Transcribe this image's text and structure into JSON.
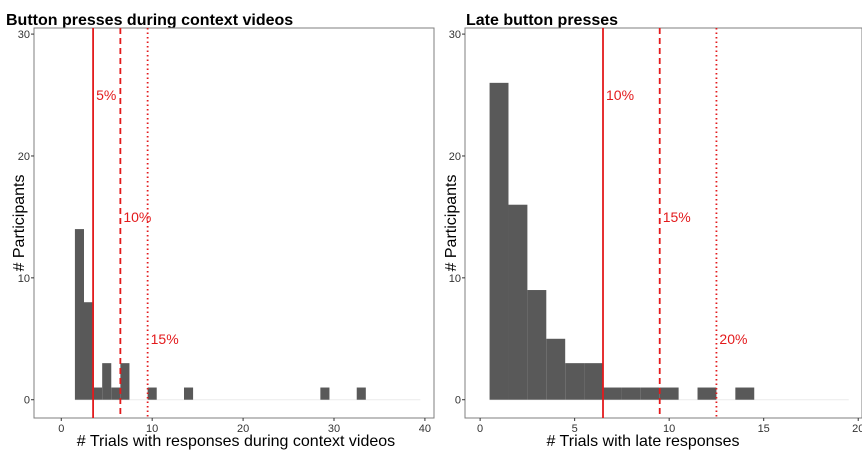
{
  "colors": {
    "bar": "#595959",
    "vline": "#e31a1c",
    "frame": "#7f7f7f",
    "text": "#000000"
  },
  "chart_data": [
    {
      "type": "bar",
      "title": "Button presses during context videos",
      "xlabel": "# Trials with responses during context videos",
      "ylabel": "# Participants",
      "xlim": [
        -3,
        41
      ],
      "ylim": [
        -1.5,
        30.5
      ],
      "xticks": [
        "0",
        "10",
        "20",
        "30",
        "40"
      ],
      "xtick_values": [
        0,
        10,
        20,
        30,
        40
      ],
      "yticks": [
        "0",
        "10",
        "20",
        "30"
      ],
      "ytick_values": [
        0,
        10,
        20,
        30
      ],
      "bin_width": 1,
      "bins": [
        {
          "x": 2,
          "count": 14
        },
        {
          "x": 3,
          "count": 8
        },
        {
          "x": 4,
          "count": 1
        },
        {
          "x": 5,
          "count": 3
        },
        {
          "x": 6,
          "count": 1
        },
        {
          "x": 7,
          "count": 3
        },
        {
          "x": 10,
          "count": 1
        },
        {
          "x": 14,
          "count": 1
        },
        {
          "x": 29,
          "count": 1
        },
        {
          "x": 33,
          "count": 1
        }
      ],
      "baseline_extent": [
        1.5,
        39.5
      ],
      "vlines": [
        {
          "x": 3.5,
          "style": "solid",
          "label": "5%",
          "label_y": 25
        },
        {
          "x": 6.5,
          "style": "dashed",
          "label": "10%",
          "label_y": 15
        },
        {
          "x": 9.5,
          "style": "dotted",
          "label": "15%",
          "label_y": 5
        }
      ],
      "grid": false
    },
    {
      "type": "bar",
      "title": "Late button presses",
      "xlabel": "# Trials with late responses",
      "ylabel": "# Participants",
      "xlim": [
        -0.8,
        20.2
      ],
      "ylim": [
        -1.5,
        30.5
      ],
      "xticks": [
        "0",
        "5",
        "10",
        "15",
        "20"
      ],
      "xtick_values": [
        0,
        5,
        10,
        15,
        20
      ],
      "yticks": [
        "0",
        "10",
        "20",
        "30"
      ],
      "ytick_values": [
        0,
        10,
        20,
        30
      ],
      "bin_width": 1,
      "bins": [
        {
          "x": 1,
          "count": 26
        },
        {
          "x": 2,
          "count": 16
        },
        {
          "x": 3,
          "count": 9
        },
        {
          "x": 4,
          "count": 5
        },
        {
          "x": 5,
          "count": 3
        },
        {
          "x": 6,
          "count": 3
        },
        {
          "x": 7,
          "count": 1
        },
        {
          "x": 8,
          "count": 1
        },
        {
          "x": 9,
          "count": 1
        },
        {
          "x": 10,
          "count": 1
        },
        {
          "x": 12,
          "count": 1
        },
        {
          "x": 14,
          "count": 1
        }
      ],
      "baseline_extent": [
        0.5,
        19.5
      ],
      "vlines": [
        {
          "x": 6.5,
          "style": "solid",
          "label": "10%",
          "label_y": 25
        },
        {
          "x": 9.5,
          "style": "dashed",
          "label": "15%",
          "label_y": 15
        },
        {
          "x": 12.5,
          "style": "dotted",
          "label": "20%",
          "label_y": 5
        }
      ],
      "grid": false
    }
  ]
}
